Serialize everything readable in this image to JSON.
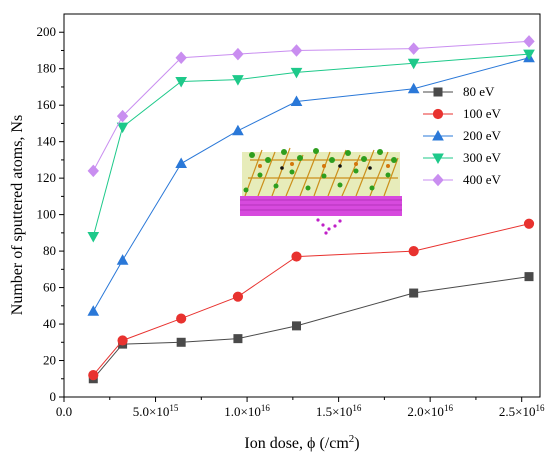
{
  "chart_data": {
    "type": "line",
    "xlabel": "Ion dose, ϕ (/cm²)",
    "ylabel": "Number of sputtered atoms, Ns",
    "xlim": [
      0,
      2.6e+16
    ],
    "ylim": [
      0,
      210
    ],
    "x_ticks": [
      0,
      5000000000000000.0,
      1e+16,
      1.5e+16,
      2e+16,
      2.5e+16
    ],
    "y_ticks": [
      0,
      20,
      40,
      60,
      80,
      100,
      120,
      140,
      160,
      180,
      200
    ],
    "x_tick_labels": [
      {
        "mantissa": "0.0",
        "exp": ""
      },
      {
        "mantissa": "5.0×10",
        "exp": "15"
      },
      {
        "mantissa": "1.0×10",
        "exp": "16"
      },
      {
        "mantissa": "1.5×10",
        "exp": "16"
      },
      {
        "mantissa": "2.0×10",
        "exp": "16"
      },
      {
        "mantissa": "2.5×10",
        "exp": "16"
      }
    ],
    "y_tick_labels": [
      "0",
      "20",
      "40",
      "60",
      "80",
      "100",
      "120",
      "140",
      "160",
      "180",
      "200"
    ],
    "x": [
      1600000000000000.0,
      3200000000000000.0,
      6400000000000000.0,
      9500000000000000.0,
      1.27e+16,
      1.91e+16,
      2.54e+16
    ],
    "grid": false,
    "legend_position": "right-middle",
    "series": [
      {
        "name": "80 eV",
        "color": "#4a4a4a",
        "marker": "square",
        "values": [
          10,
          29,
          30,
          32,
          39,
          57,
          66
        ]
      },
      {
        "name": "100 eV",
        "color": "#e8322f",
        "marker": "circle",
        "values": [
          12,
          31,
          43,
          55,
          77,
          80,
          95
        ]
      },
      {
        "name": "200 eV",
        "color": "#2a78d8",
        "marker": "triangle-up",
        "values": [
          47,
          75,
          128,
          146,
          162,
          169,
          186
        ]
      },
      {
        "name": "300 eV",
        "color": "#1ec98a",
        "marker": "triangle-down",
        "values": [
          88,
          148,
          173,
          174,
          178,
          183,
          188
        ]
      },
      {
        "name": "400 eV",
        "color": "#c98ef0",
        "marker": "diamond",
        "values": [
          124,
          154,
          186,
          188,
          190,
          191,
          195
        ]
      }
    ],
    "inset": "molecular simulation snapshot (atomic structure)"
  }
}
